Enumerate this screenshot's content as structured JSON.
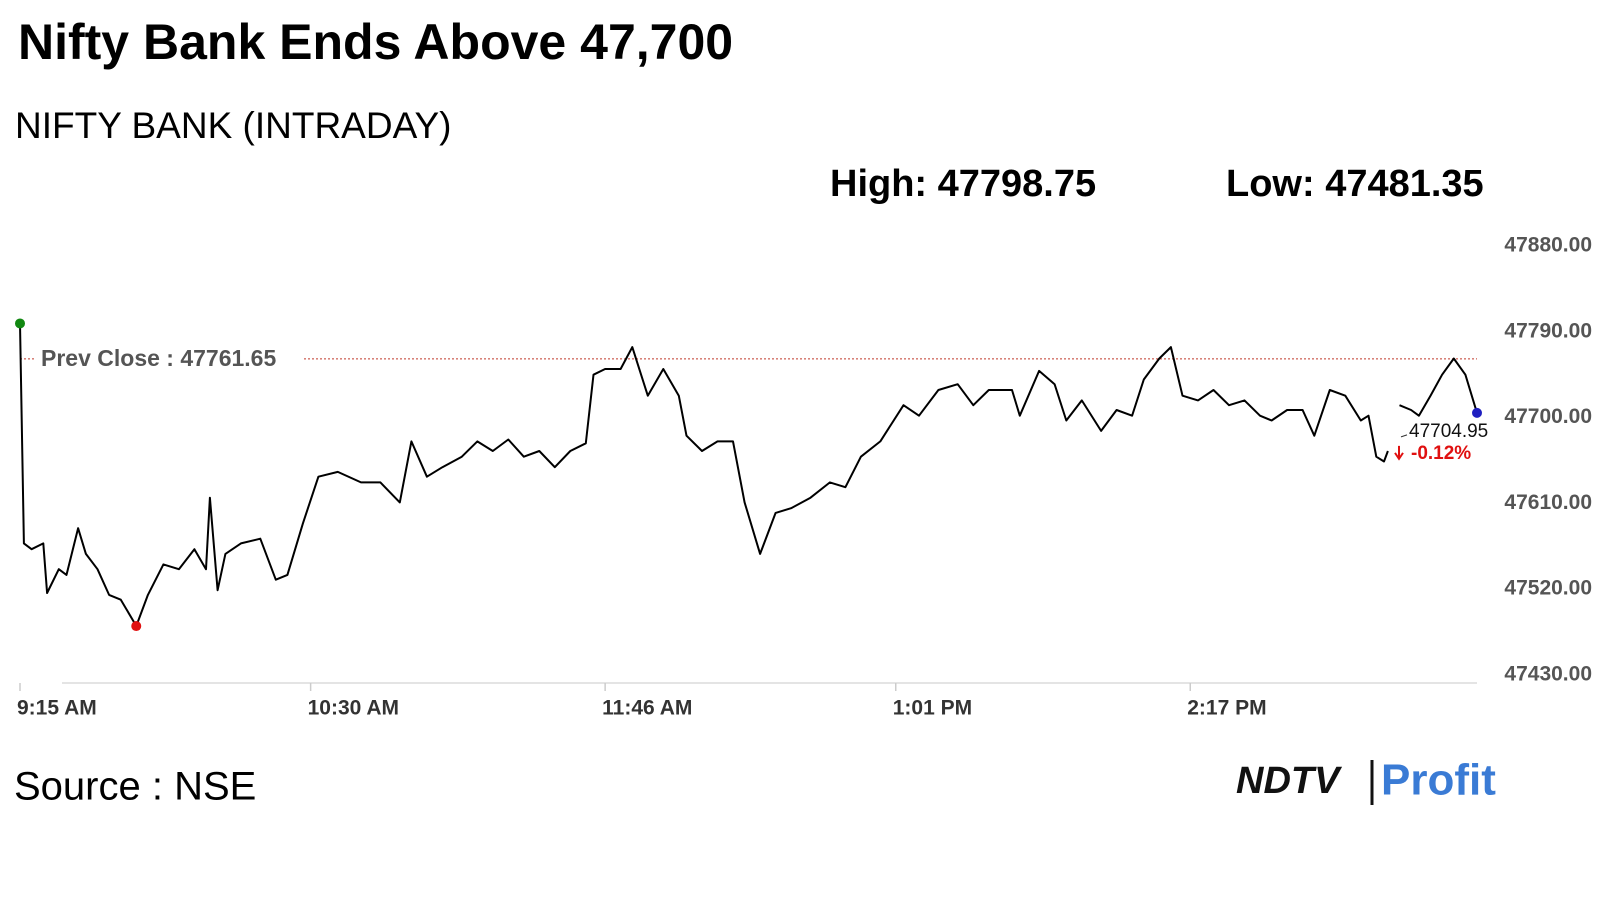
{
  "chart_data": {
    "type": "line",
    "title": "Nifty Bank Ends Above 47,700",
    "subtitle": "NIFTY BANK (INTRADAY)",
    "high": {
      "value": 47798.75,
      "label": "High: 47798.75"
    },
    "low": {
      "value": 47481.35,
      "label": "Low: 47481.35"
    },
    "prev_close": {
      "value": 47761.65,
      "label": "Prev Close : 47761.65"
    },
    "last_label": "47704.95",
    "change_label": "-0.12%",
    "source": "Source : NSE",
    "logo": {
      "left": "NDTV",
      "right": "Profit"
    },
    "xlim": [
      0,
      376
    ],
    "xticks": [
      {
        "value": 0,
        "label": "9:15 AM"
      },
      {
        "value": 75,
        "label": "10:30 AM"
      },
      {
        "value": 151,
        "label": "11:46 AM"
      },
      {
        "value": 226,
        "label": "1:01 PM"
      },
      {
        "value": 302,
        "label": "2:17 PM"
      }
    ],
    "ylim": [
      47430,
      47880
    ],
    "yticks": [
      {
        "value": 47880,
        "label": "47880.00"
      },
      {
        "value": 47790,
        "label": "47790.00"
      },
      {
        "value": 47700,
        "label": "47700.00"
      },
      {
        "value": 47610,
        "label": "47610.00"
      },
      {
        "value": 47520,
        "label": "47520.00"
      },
      {
        "value": 47430,
        "label": "47430.00"
      }
    ],
    "x": [
      0,
      1,
      3,
      6,
      7,
      10,
      12,
      15,
      17,
      20,
      23,
      26,
      30,
      33,
      37,
      41,
      45,
      48,
      49,
      51,
      53,
      57,
      62,
      66,
      69,
      73,
      77,
      82,
      88,
      93,
      98,
      101,
      105,
      109,
      114,
      118,
      122,
      126,
      130,
      134,
      138,
      142,
      146,
      148,
      151,
      155,
      158,
      162,
      166,
      170,
      172,
      176,
      180,
      184,
      187,
      191,
      195,
      199,
      204,
      209,
      213,
      217,
      222,
      228,
      232,
      237,
      242,
      246,
      250,
      256,
      258,
      263,
      267,
      270,
      274,
      279,
      283,
      287,
      290,
      294,
      297,
      300,
      304,
      308,
      312,
      316,
      320,
      323,
      327,
      331,
      334,
      338,
      342,
      346,
      348,
      350,
      352,
      353,
      355,
      356,
      359,
      361,
      364,
      367,
      370,
      373,
      376
    ],
    "series": [
      {
        "color": "#000000",
        "first_color": "#118811",
        "low_color": "#e01010",
        "last_color": "#1f1fc0",
        "values": [
          47798.75,
          47568,
          47562,
          47568,
          47516,
          47541,
          47535,
          47584,
          47557,
          47541,
          47514,
          47509,
          47481.35,
          47514,
          47546,
          47541,
          47562,
          47541,
          47616,
          47519,
          47557,
          47568,
          47573,
          47530,
          47535,
          47589,
          47638,
          47643,
          47632,
          47632,
          47611,
          47675,
          47638,
          47648,
          47659,
          47675,
          47665,
          47677,
          47659,
          47665,
          47648,
          47665,
          47673,
          47745,
          47751,
          47751,
          47774,
          47723,
          47751,
          47723,
          47681,
          47665,
          47675,
          47675,
          47611,
          47557,
          47600,
          47605,
          47616,
          47632,
          47627,
          47659,
          47675,
          47713,
          47702,
          47729,
          47735,
          47713,
          47729,
          47729,
          47702,
          47749,
          47735,
          47697,
          47718,
          47686,
          47708,
          47702,
          47740,
          47762,
          47774,
          47723,
          47718,
          47729,
          47713,
          47718,
          47702,
          47697,
          47708,
          47708,
          47681,
          47729,
          47723,
          47697,
          47702,
          47659,
          47654,
          47665,
          null,
          47713,
          47708,
          47702,
          47723,
          47745,
          47762,
          47745,
          47704.95
        ]
      }
    ],
    "prev_close_color": "#c0392b",
    "change_color": "#e01010"
  }
}
